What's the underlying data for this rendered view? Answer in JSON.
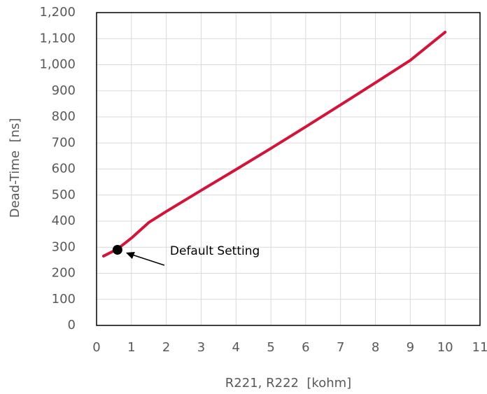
{
  "chart_data": {
    "type": "line",
    "x_label": "R221, R222  [kohm]",
    "y_label": "Dead-Time  [ns]",
    "series": [
      {
        "name": "Dead-Time",
        "color": "#d2143a",
        "x": [
          0.2,
          0.6,
          1,
          1.5,
          2,
          3,
          4,
          5,
          6,
          7,
          8,
          9,
          10
        ],
        "values": [
          266,
          293,
          335,
          395,
          437,
          518,
          598,
          679,
          762,
          846,
          931,
          1017,
          1125
        ]
      }
    ],
    "xlim": [
      0,
      11
    ],
    "xticks": [
      0,
      1,
      2,
      3,
      4,
      5,
      6,
      7,
      8,
      9,
      10,
      11
    ],
    "ylim": [
      0,
      1200
    ],
    "yticks": [
      0,
      100,
      200,
      300,
      400,
      500,
      600,
      700,
      800,
      900,
      {
        "value": 1000,
        "label": "1,000"
      },
      {
        "value": 1100,
        "label": "1,100"
      },
      {
        "value": 1200,
        "label": "1,200"
      }
    ],
    "grid": true,
    "annotations": [
      {
        "text": "Default Setting",
        "x": 0.6,
        "y": 290
      }
    ]
  }
}
